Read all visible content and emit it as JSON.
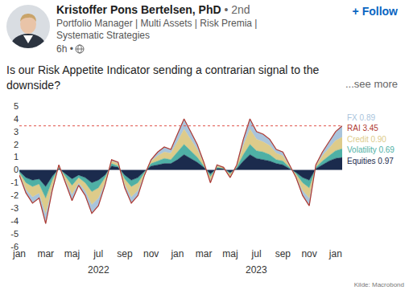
{
  "post": {
    "author": "Kristoffer Pons Bertelsen, PhD",
    "degree": "• 2nd",
    "follow": "+ Follow",
    "headline": "Portfolio Manager | Multi Assets | Risk Premia | Systematic Strategies",
    "time": "6h •",
    "body": "Is our Risk Appetite Indicator sending a contrarian signal to the downside?",
    "see_more": "...see more"
  },
  "chart_data": {
    "type": "area",
    "stacked": true,
    "grid": false,
    "source": "Kilde: Macrobond",
    "categories": [
      "jan",
      null,
      null,
      null,
      "mar",
      null,
      null,
      null,
      "maj",
      null,
      null,
      null,
      "jul",
      null,
      null,
      null,
      "sep",
      null,
      null,
      null,
      "nov",
      null,
      null,
      null,
      "jan",
      null,
      null,
      null,
      "mar",
      null,
      null,
      null,
      "maj",
      null,
      null,
      null,
      "jul",
      null,
      null,
      null,
      "sep",
      null,
      null,
      null,
      "nov",
      null,
      null,
      null,
      "jan",
      null
    ],
    "annotations": [
      {
        "text": "2022",
        "x": 12
      },
      {
        "text": "2023",
        "x": 36
      }
    ],
    "ylim": [
      -6,
      5
    ],
    "yticks": [
      -6,
      -5,
      -4,
      -3,
      -2,
      -1,
      0,
      1,
      2,
      3,
      4,
      5
    ],
    "reference_lines": [
      {
        "value": 3.45,
        "color": "#e0524a",
        "line_style": "dot"
      }
    ],
    "series": [
      {
        "name": "FX 0.89",
        "color": "#a9c4dc",
        "type": "area",
        "values": [
          -0.1,
          -0.3,
          -0.5,
          -0.4,
          -0.8,
          -0.3,
          0.1,
          -0.2,
          -0.5,
          -0.2,
          -0.4,
          -0.7,
          -0.6,
          -0.2,
          0.1,
          0.1,
          -0.3,
          -0.5,
          -0.4,
          -0.1,
          0.1,
          0.3,
          0.4,
          0.3,
          0.6,
          0.8,
          0.6,
          0.4,
          0.1,
          -0.2,
          0.1,
          0,
          -0.1,
          0.1,
          0.5,
          0.8,
          0.6,
          0.6,
          0.5,
          0.3,
          0.3,
          0.1,
          -0.1,
          -0.4,
          -0.6,
          0.1,
          0.3,
          0.5,
          0.7,
          0.89
        ]
      },
      {
        "name": "RAI 3.45",
        "color": "#b03a32",
        "type": "line",
        "values": [
          -0.4,
          -1.8,
          -2.6,
          -2.2,
          -4.2,
          -1.6,
          0.4,
          -1.0,
          -2.4,
          -1.2,
          -2.0,
          -3.4,
          -2.8,
          -1.2,
          0.8,
          0.6,
          -1.4,
          -2.6,
          -2.0,
          -0.4,
          0.8,
          1.4,
          1.8,
          1.6,
          2.8,
          4.0,
          3.0,
          2.0,
          0.6,
          -1.0,
          0.4,
          0.2,
          -0.6,
          0.4,
          2.4,
          4.0,
          3.0,
          2.8,
          2.4,
          1.6,
          1.4,
          0.4,
          -0.6,
          -2.0,
          -2.8,
          0.4,
          1.4,
          2.2,
          3.0,
          3.45
        ]
      },
      {
        "name": "Credit 0.90",
        "color": "#ddcb8a",
        "type": "area",
        "values": [
          -0.1,
          -0.5,
          -0.8,
          -0.7,
          -1.2,
          -0.5,
          0.1,
          -0.3,
          -0.7,
          -0.4,
          -0.6,
          -1.0,
          -0.8,
          -0.4,
          0.2,
          0.2,
          -0.4,
          -0.8,
          -0.6,
          -0.1,
          0.2,
          0.4,
          0.5,
          0.5,
          0.8,
          1.2,
          0.9,
          0.6,
          0.2,
          -0.3,
          0.1,
          0.1,
          -0.2,
          0.1,
          0.7,
          1.2,
          0.9,
          0.8,
          0.7,
          0.5,
          0.4,
          0.1,
          -0.2,
          -0.6,
          -0.8,
          0.1,
          0.4,
          0.6,
          0.8,
          0.9
        ]
      },
      {
        "name": "Volatility 0.69",
        "color": "#4fb0a5",
        "type": "area",
        "values": [
          -0.1,
          -0.4,
          -0.5,
          -0.4,
          -0.9,
          -0.3,
          0.1,
          -0.2,
          -0.5,
          -0.2,
          -0.4,
          -0.7,
          -0.6,
          -0.2,
          0.2,
          0.1,
          -0.3,
          -0.5,
          -0.4,
          -0.1,
          0.2,
          0.3,
          0.4,
          0.3,
          0.6,
          0.8,
          0.6,
          0.4,
          0.1,
          -0.2,
          0.1,
          0,
          -0.1,
          0.1,
          0.5,
          0.8,
          0.6,
          0.6,
          0.5,
          0.3,
          0.3,
          0.1,
          -0.1,
          -0.4,
          -0.6,
          0.1,
          0.3,
          0.4,
          0.6,
          0.69
        ]
      },
      {
        "name": "Equities 0.97",
        "color": "#1b2b4d",
        "type": "area",
        "values": [
          -0.1,
          -0.6,
          -0.8,
          -0.7,
          -1.3,
          -0.5,
          0.1,
          -0.3,
          -0.7,
          -0.4,
          -0.6,
          -1.0,
          -0.8,
          -0.4,
          0.3,
          0.2,
          -0.4,
          -0.8,
          -0.6,
          -0.1,
          0.3,
          0.4,
          0.5,
          0.5,
          0.8,
          1.2,
          0.9,
          0.6,
          0.2,
          -0.3,
          0.1,
          0.1,
          -0.2,
          0.1,
          0.7,
          1.2,
          0.9,
          0.8,
          0.7,
          0.5,
          0.4,
          0.1,
          -0.2,
          -0.6,
          -0.8,
          0.1,
          0.4,
          0.7,
          0.9,
          0.97
        ]
      }
    ]
  }
}
